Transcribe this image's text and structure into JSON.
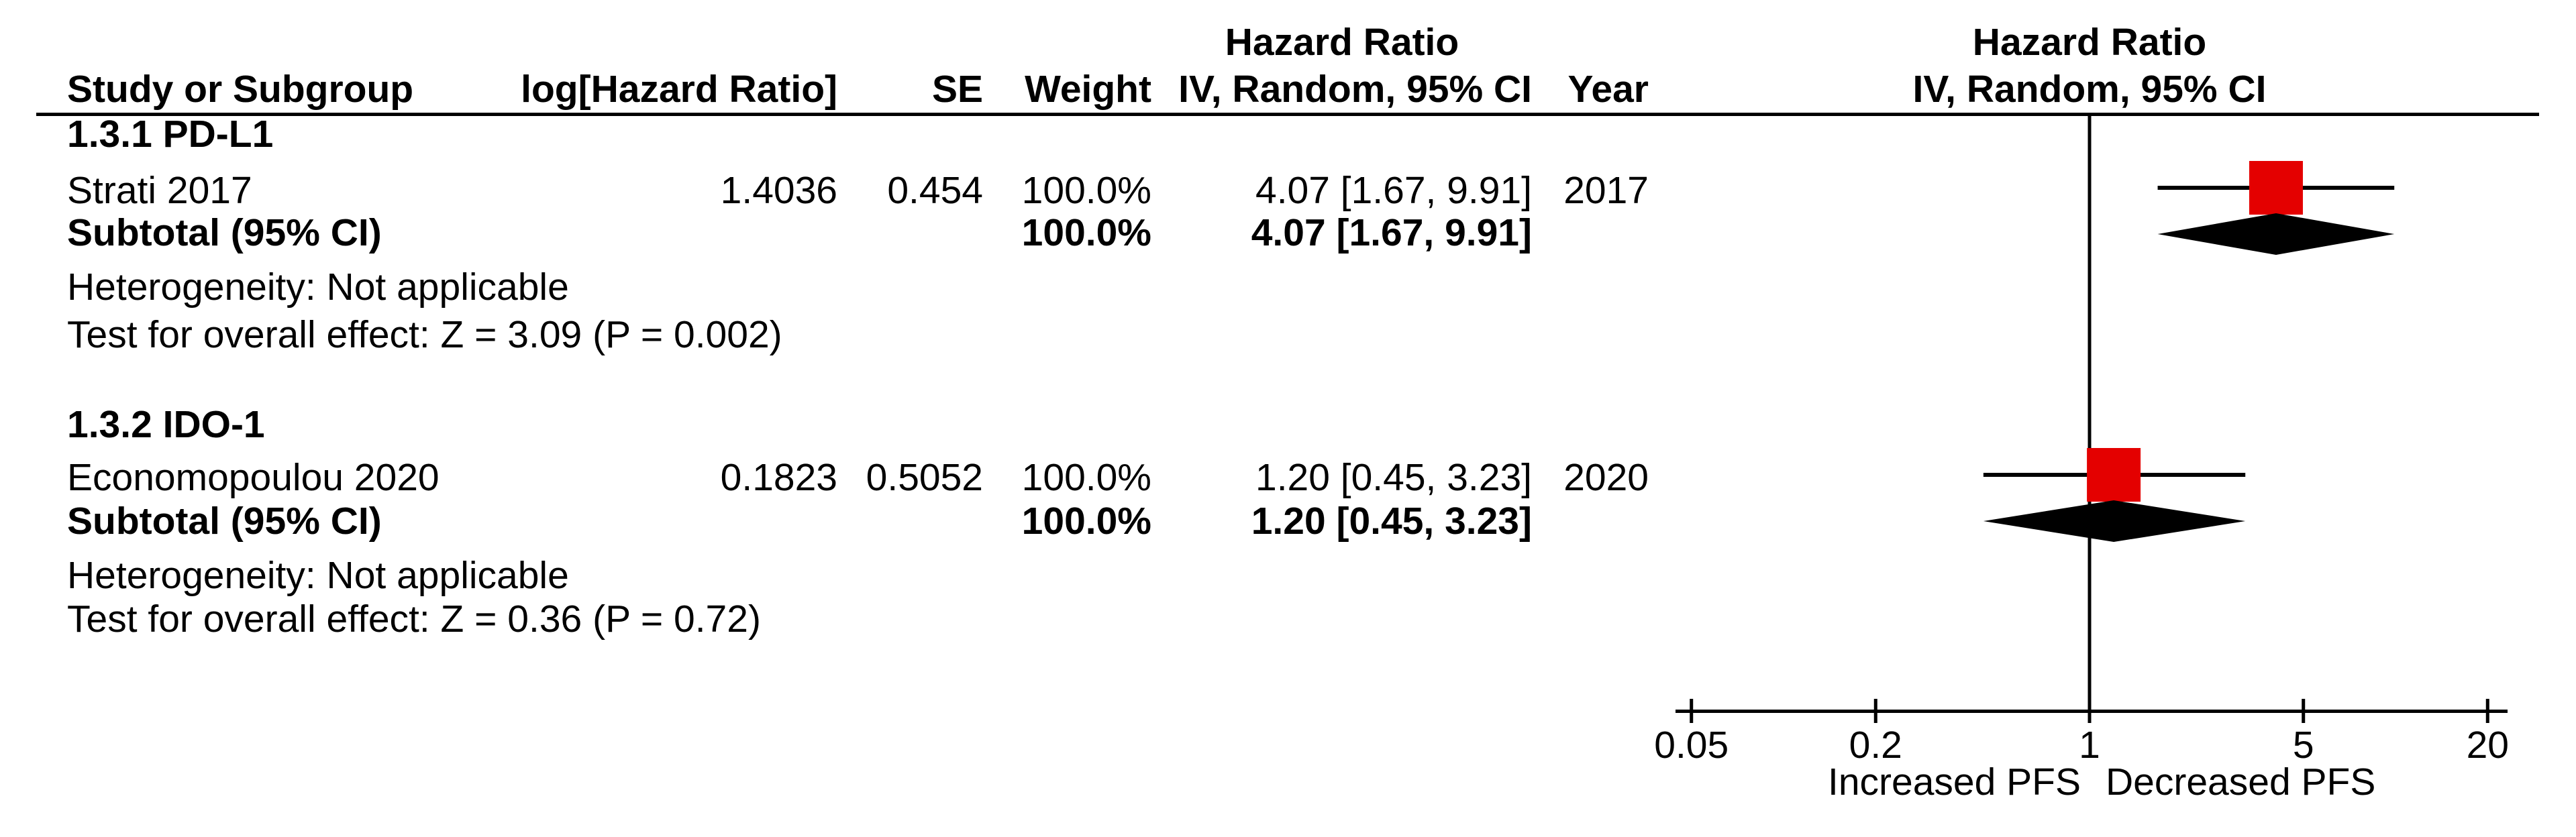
{
  "header": {
    "study_col": "Study or Subgroup",
    "loghr_col": "log[Hazard Ratio]",
    "se_col": "SE",
    "weight_col": "Weight",
    "effect_title": "Hazard Ratio",
    "effect_col": "IV, Random, 95% CI",
    "year_col": "Year",
    "plot_title": "Hazard Ratio",
    "plot_subtitle": "IV, Random, 95% CI"
  },
  "table": {
    "groups": [
      {
        "title": "1.3.1 PD-L1",
        "rows": [
          {
            "study": "Strati 2017",
            "log_hr": "1.4036",
            "se": "0.454",
            "weight": "100.0%",
            "ci": "4.07 [1.67, 9.91]",
            "year": "2017"
          }
        ],
        "subtotal_label": "Subtotal (95% CI)",
        "subtotal_weight": "100.0%",
        "subtotal_ci": "4.07 [1.67, 9.91]",
        "heterogeneity": "Heterogeneity: Not applicable",
        "overall": "Test for overall effect: Z = 3.09 (P = 0.002)"
      },
      {
        "title": "1.3.2 IDO-1",
        "rows": [
          {
            "study": "Economopoulou 2020",
            "log_hr": "0.1823",
            "se": "0.5052",
            "weight": "100.0%",
            "ci": "1.20 [0.45, 3.23]",
            "year": "2020"
          }
        ],
        "subtotal_label": "Subtotal (95% CI)",
        "subtotal_weight": "100.0%",
        "subtotal_ci": "1.20 [0.45, 3.23]",
        "heterogeneity": "Heterogeneity: Not applicable",
        "overall": "Test for overall effect: Z = 0.36 (P = 0.72)"
      }
    ]
  },
  "axis": {
    "tick_labels": [
      "0.05",
      "0.2",
      "1",
      "5",
      "20"
    ],
    "left_label": "Increased PFS",
    "right_label": "Decreased PFS"
  },
  "chart_data": {
    "type": "scatter",
    "subtype": "forest-plot",
    "x_scale": "log10",
    "xlim": [
      0.05,
      20
    ],
    "x_ticks": [
      0.05,
      0.2,
      1,
      5,
      20
    ],
    "null_line": 1,
    "x_axis_left_label": "Increased PFS",
    "x_axis_right_label": "Decreased PFS",
    "effect_measure": "Hazard Ratio, IV, Random, 95% CI",
    "colors": {
      "square": "#E40000",
      "diamond": "#000000",
      "line": "#000000"
    },
    "groups": [
      {
        "name": "1.3.1 PD-L1",
        "studies": [
          {
            "name": "Strati 2017",
            "log_hr": 1.4036,
            "se": 0.454,
            "weight_pct": 100.0,
            "hr": 4.07,
            "ci_low": 1.67,
            "ci_high": 9.91,
            "year": 2017
          }
        ],
        "subtotal": {
          "hr": 4.07,
          "ci_low": 1.67,
          "ci_high": 9.91,
          "weight_pct": 100.0,
          "z": 3.09,
          "p": 0.002
        }
      },
      {
        "name": "1.3.2 IDO-1",
        "studies": [
          {
            "name": "Economopoulou 2020",
            "log_hr": 0.1823,
            "se": 0.5052,
            "weight_pct": 100.0,
            "hr": 1.2,
            "ci_low": 0.45,
            "ci_high": 3.23,
            "year": 2020
          }
        ],
        "subtotal": {
          "hr": 1.2,
          "ci_low": 0.45,
          "ci_high": 3.23,
          "weight_pct": 100.0,
          "z": 0.36,
          "p": 0.72
        }
      }
    ]
  }
}
